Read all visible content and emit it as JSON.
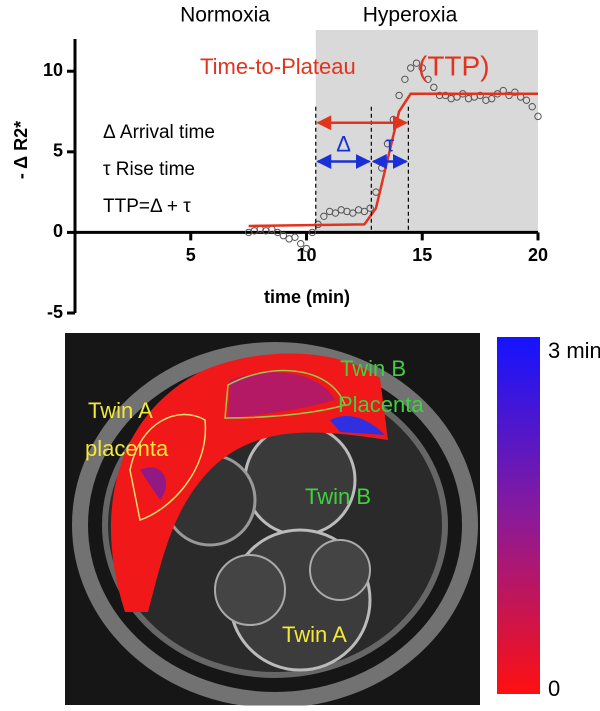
{
  "chart_data": {
    "type": "scatter",
    "region_labels": [
      "Normoxia",
      "Hyperoxia"
    ],
    "hyperoxia_start": 10.4,
    "annotation": [
      "Time-to-Plateau",
      "(TTP)"
    ],
    "legend_text": [
      "Δ Arrival time",
      "τ  Rise time",
      "TTP=Δ + τ"
    ],
    "delta_label": "Δ",
    "tau_label": "τ",
    "markers": [
      10.4,
      12.8,
      14.4
    ],
    "ttp_arrow_y": 6.8,
    "parts_arrow_y": 4.4,
    "xlabel": "time (min)",
    "ylabel": "- Δ R2*",
    "xlim": [
      0,
      20
    ],
    "ylim": [
      -5,
      12
    ],
    "xticks": [
      5,
      10,
      15,
      20
    ],
    "yticks": [
      -5,
      0,
      5,
      10
    ],
    "series": [
      {
        "type": "scatter",
        "color": "#555555",
        "x": [
          7.5,
          7.75,
          8,
          8.25,
          8.5,
          8.75,
          9,
          9.25,
          9.5,
          9.75,
          10,
          10.25,
          10.5,
          10.75,
          11,
          11.25,
          11.5,
          11.75,
          12,
          12.25,
          12.5,
          12.75,
          13,
          13.25,
          13.5,
          13.75,
          14,
          14.25,
          14.5,
          14.75,
          15,
          15.25,
          15.5,
          15.75,
          16,
          16.25,
          16.5,
          16.75,
          17,
          17.25,
          17.5,
          17.75,
          18,
          18.25,
          18.5,
          18.75,
          19,
          19.25,
          19.5,
          19.75,
          20
        ],
        "values": [
          0,
          0.1,
          0.2,
          0.1,
          0.2,
          0,
          -0.2,
          -0.4,
          -0.3,
          -0.7,
          -1,
          0,
          0.5,
          1,
          1.3,
          1.2,
          1.4,
          1.3,
          1.2,
          1.4,
          1.3,
          1.5,
          2.5,
          4,
          5.5,
          7,
          8.5,
          9.5,
          10.2,
          10.5,
          10.2,
          9.5,
          9,
          8.5,
          8.5,
          8.3,
          8.4,
          8.6,
          8.3,
          8.4,
          8.5,
          8.2,
          8.3,
          8.6,
          8.8,
          8.5,
          8.7,
          8.4,
          8.2,
          7.8,
          7.2
        ]
      },
      {
        "type": "line",
        "color": "#e0341f",
        "x": [
          7.5,
          12.5,
          13,
          13.5,
          14,
          14.5,
          20
        ],
        "values": [
          0.4,
          0.5,
          1.5,
          4.5,
          7.5,
          8.6,
          8.6
        ]
      }
    ]
  },
  "image": {
    "labels": [
      "Twin B",
      "Placenta",
      "Twin A",
      "placenta",
      "Twin B",
      "Twin A"
    ],
    "colorbar": {
      "top_label": "3 min",
      "bottom_label": "0"
    }
  }
}
